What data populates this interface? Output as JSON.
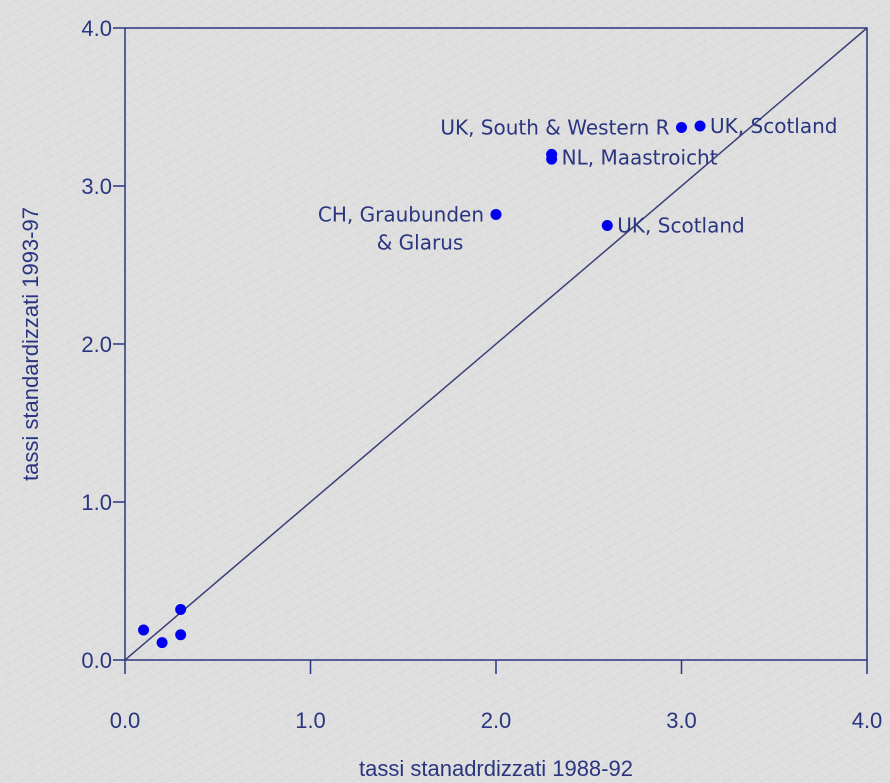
{
  "chart_data": {
    "type": "scatter",
    "xlabel": "tassi stanadrdizzati 1988-92",
    "ylabel": "tassi standardizzati 1993-97",
    "xlim": [
      0,
      4
    ],
    "ylim": [
      0,
      4
    ],
    "x_ticks": [
      "0.0",
      "1.0",
      "2.0",
      "3.0",
      "4.0"
    ],
    "y_ticks": [
      "0.0",
      "1.0",
      "2.0",
      "3.0",
      "4.0"
    ],
    "grid": false,
    "reference_line": {
      "from": [
        0,
        0
      ],
      "to": [
        4,
        4
      ]
    },
    "point_color": "#0000ee",
    "axis_color": "#2a3580",
    "points": [
      {
        "x": 0.1,
        "y": 0.19
      },
      {
        "x": 0.2,
        "y": 0.11
      },
      {
        "x": 0.3,
        "y": 0.32
      },
      {
        "x": 0.3,
        "y": 0.16
      },
      {
        "x": 2.0,
        "y": 2.82
      },
      {
        "x": 2.3,
        "y": 3.2
      },
      {
        "x": 2.3,
        "y": 3.17
      },
      {
        "x": 2.6,
        "y": 2.75
      },
      {
        "x": 3.0,
        "y": 3.37
      },
      {
        "x": 3.1,
        "y": 3.38
      }
    ],
    "annotations": [
      {
        "lines": [
          "UK, South & Western R"
        ],
        "x": 3.0,
        "y": 3.37,
        "anchor": "end"
      },
      {
        "lines": [
          "UK, Scotland"
        ],
        "x": 3.1,
        "y": 3.38,
        "anchor": "start"
      },
      {
        "lines": [
          "NL, Maastroicht"
        ],
        "x": 2.3,
        "y": 3.18,
        "anchor": "start"
      },
      {
        "lines": [
          "CH, Graubunden",
          "& Glarus"
        ],
        "x": 2.0,
        "y": 2.82,
        "anchor": "end"
      },
      {
        "lines": [
          "UK, Scotland"
        ],
        "x": 2.6,
        "y": 2.75,
        "anchor": "start"
      }
    ]
  }
}
